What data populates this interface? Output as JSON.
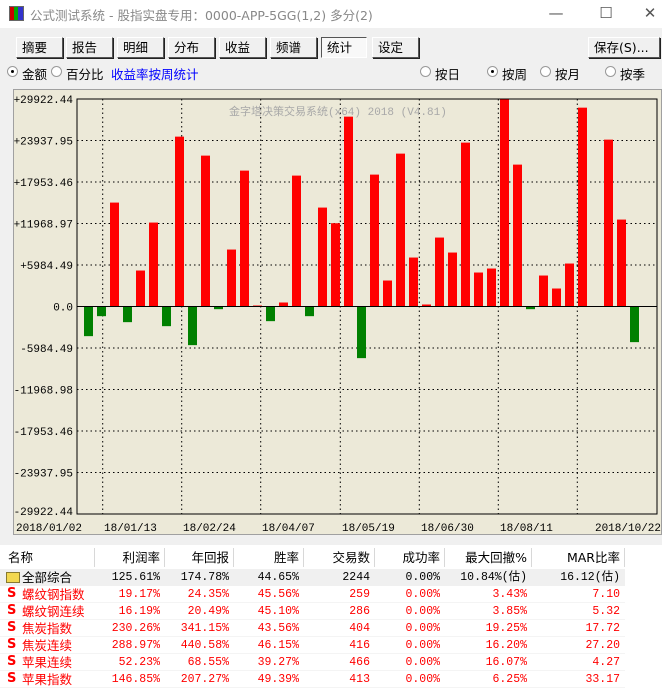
{
  "window": {
    "title": "公式测试系统 - 股指实盘专用：0000-APP-5GG(1,2) 多分(2)",
    "minimize": "—",
    "maximize": "☐",
    "close": "✕"
  },
  "tabs": [
    {
      "label": "摘要"
    },
    {
      "label": "报告"
    },
    {
      "label": "明细"
    },
    {
      "label": "分布"
    },
    {
      "label": "收益"
    },
    {
      "label": "频谱"
    },
    {
      "label": "统计",
      "active": true
    },
    {
      "label": "设定"
    }
  ],
  "save_label": "保存(S)...",
  "options": {
    "amount": "金额",
    "amount_selected": true,
    "percent": "百分比",
    "stat_link": "收益率按周统计",
    "period": [
      {
        "label": "按日",
        "selected": false
      },
      {
        "label": "按周",
        "selected": true
      },
      {
        "label": "按月",
        "selected": false
      },
      {
        "label": "按季",
        "selected": false
      }
    ]
  },
  "chart_data": {
    "type": "bar",
    "watermark": "金字塔决策交易系统(x64) 2018 (V4.81)",
    "ylim": [
      -29922.44,
      29922.44
    ],
    "yticks": [
      "+29922.44",
      "+23937.95",
      "+17953.46",
      "+11968.97",
      "+5984.49",
      "0.0",
      "-5984.49",
      "-11968.98",
      "-17953.46",
      "-23937.95",
      "-29922.44"
    ],
    "xticks": [
      "2018/01/02",
      "18/01/13",
      "18/02/24",
      "18/04/07",
      "18/05/19",
      "18/06/30",
      "18/08/11",
      "2018/10/22"
    ],
    "grid": true,
    "colors": {
      "positive": "#ff0000",
      "negative": "#008000",
      "background": "#ece9d8"
    },
    "values": [
      -4275,
      -1393,
      14985,
      -2257,
      5187,
      12104,
      -2834,
      24495,
      -5571,
      21758,
      -384,
      8213,
      19596,
      144,
      -2113,
      576,
      18876,
      -1393,
      14265,
      12008,
      27377,
      -7445,
      19020,
      3746,
      22046,
      7060,
      288,
      9942,
      7781,
      23631,
      4899,
      5475,
      29922,
      20461,
      -384,
      4467,
      2594,
      6196,
      28674,
      0,
      24063,
      12536,
      -5139
    ]
  },
  "table": {
    "columns": [
      "名称",
      "利润率",
      "年回报",
      "胜率",
      "交易数",
      "成功率",
      "最大回撤%",
      "MAR比率"
    ],
    "rows": [
      {
        "icon": "folder-icon",
        "cells": [
          "全部综合",
          "125.61%",
          "174.78%",
          "44.65%",
          "2244",
          "0.00%",
          "10.84%(估)",
          "16.12(估)"
        ]
      },
      {
        "icon": "S",
        "cells": [
          "螺纹钢指数",
          "19.17%",
          "24.35%",
          "45.56%",
          "259",
          "0.00%",
          "3.43%",
          "7.10"
        ]
      },
      {
        "icon": "S",
        "cells": [
          "螺纹钢连续",
          "16.19%",
          "20.49%",
          "45.10%",
          "286",
          "0.00%",
          "3.85%",
          "5.32"
        ]
      },
      {
        "icon": "S",
        "cells": [
          "焦炭指数",
          "230.26%",
          "341.15%",
          "43.56%",
          "404",
          "0.00%",
          "19.25%",
          "17.72"
        ]
      },
      {
        "icon": "S",
        "cells": [
          "焦炭连续",
          "288.97%",
          "440.58%",
          "46.15%",
          "416",
          "0.00%",
          "16.20%",
          "27.20"
        ]
      },
      {
        "icon": "S",
        "cells": [
          "苹果连续",
          "52.23%",
          "68.55%",
          "39.27%",
          "466",
          "0.00%",
          "16.07%",
          "4.27"
        ]
      },
      {
        "icon": "S",
        "cells": [
          "苹果指数",
          "146.85%",
          "207.27%",
          "49.39%",
          "413",
          "0.00%",
          "6.25%",
          "33.17"
        ]
      }
    ]
  }
}
